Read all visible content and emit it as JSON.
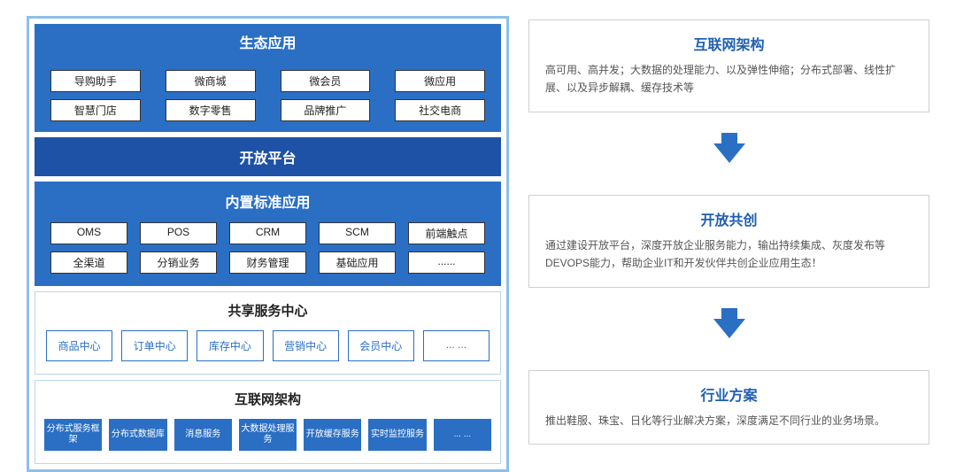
{
  "colors": {
    "frame_border": "#8fbfe8",
    "primary_blue": "#2a6fc4",
    "deep_blue": "#1e52a6",
    "box_border": "#cfcfcf",
    "text_gray": "#555555",
    "title_blue": "#1f5fb0"
  },
  "left": {
    "ecology": {
      "title": "生态应用",
      "items": [
        "导购助手",
        "微商城",
        "微会员",
        "微应用",
        "智慧门店",
        "数字零售",
        "品牌推广",
        "社交电商"
      ]
    },
    "platform": {
      "title": "开放平台"
    },
    "builtin": {
      "title": "内置标准应用",
      "items": [
        "OMS",
        "POS",
        "CRM",
        "SCM",
        "前端触点",
        "全渠道",
        "分销业务",
        "财务管理",
        "基础应用",
        "......"
      ]
    },
    "shared": {
      "title": "共享服务中心",
      "items": [
        "商品中心",
        "订单中心",
        "库存中心",
        "营销中心",
        "会员中心",
        "... ..."
      ]
    },
    "arch": {
      "title": "互联网架构",
      "items": [
        "分布式服务框架",
        "分布式数据库",
        "消息服务",
        "大数据处理服务",
        "开放缓存服务",
        "实时监控服务",
        "... ..."
      ]
    }
  },
  "right": {
    "box1": {
      "title": "互联网架构",
      "desc": "高可用、高并发；大数据的处理能力、以及弹性伸缩；分布式部署、线性扩展、以及异步解耦、缓存技术等"
    },
    "box2": {
      "title": "开放共创",
      "desc": "通过建设开放平台，深度开放企业服务能力，输出持续集成、灰度发布等DEVOPS能力，帮助企业IT和开发伙伴共创企业应用生态！"
    },
    "box3": {
      "title": "行业方案",
      "desc": "推出鞋服、珠宝、日化等行业解决方案，深度满足不同行业的业务场景。"
    }
  }
}
